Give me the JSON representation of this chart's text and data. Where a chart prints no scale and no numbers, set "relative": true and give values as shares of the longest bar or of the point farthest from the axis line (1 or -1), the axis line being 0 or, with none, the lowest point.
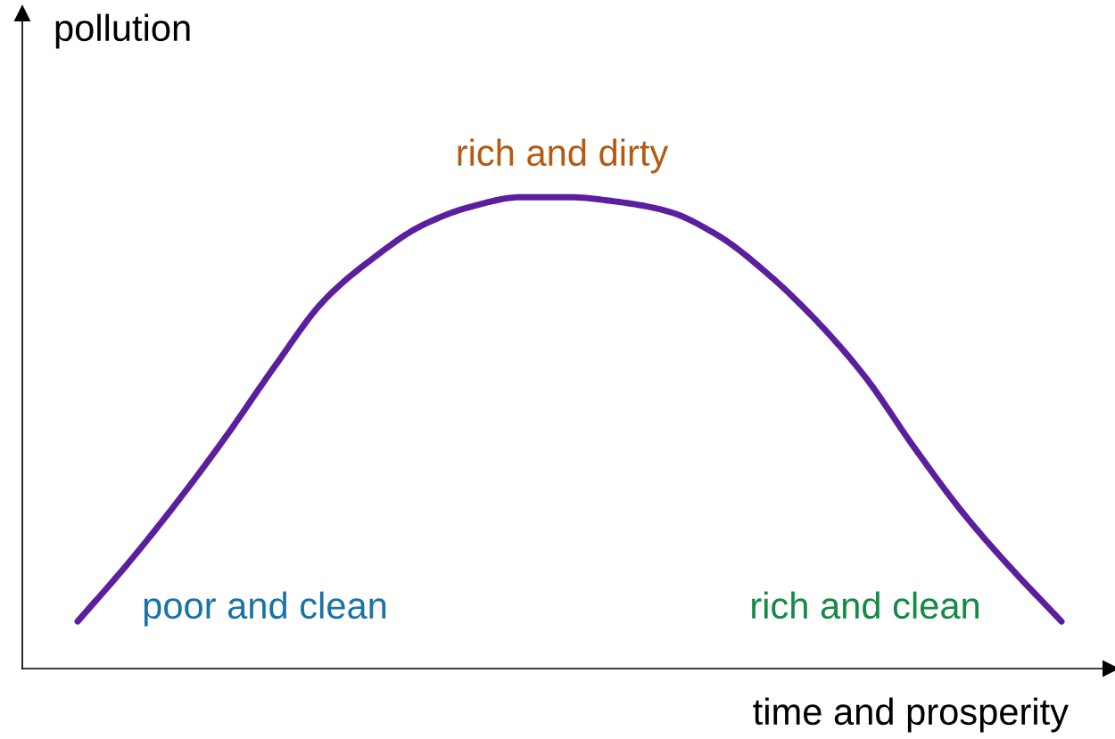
{
  "chart_data": {
    "type": "line",
    "relative": true,
    "xlabel": "time and prosperity",
    "ylabel": "pollution",
    "categories": [
      null,
      null,
      null,
      null,
      null,
      null,
      null,
      null,
      null,
      null,
      null,
      null,
      null,
      null,
      null,
      null,
      null,
      null,
      null,
      null,
      null
    ],
    "series": [
      {
        "color": "#5b1f9e",
        "values": [
          0.1,
          0.22,
          0.35,
          0.49,
          0.64,
          0.78,
          0.87,
          0.94,
          0.98,
          1.0,
          1.0,
          0.99,
          0.97,
          0.92,
          0.84,
          0.74,
          0.62,
          0.47,
          0.33,
          0.21,
          0.1
        ]
      }
    ],
    "annotations": [
      "poor and clean",
      "rich and dirty",
      "rich and clean"
    ],
    "marker": "none",
    "line_style": "solid",
    "legend": false,
    "tick_labels": false
  }
}
